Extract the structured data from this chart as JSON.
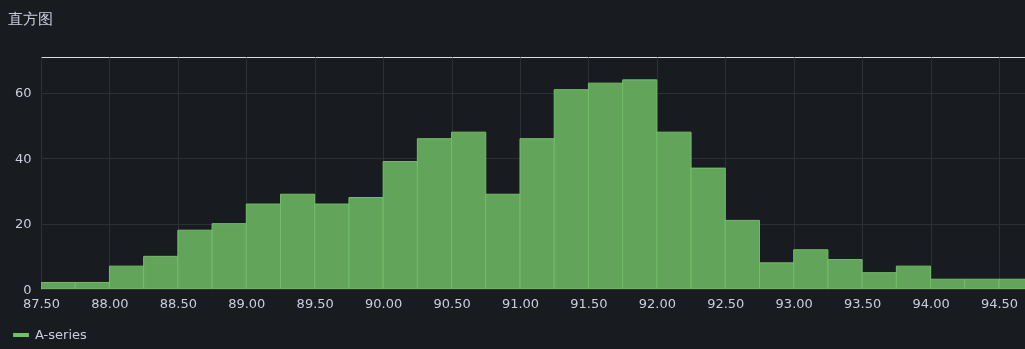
{
  "chart_data": {
    "type": "histogram",
    "title": "直方图",
    "bins": [
      87.5,
      87.75,
      88.0,
      88.25,
      88.5,
      88.75,
      89.0,
      89.25,
      89.5,
      89.75,
      90.0,
      90.25,
      90.5,
      90.75,
      91.0,
      91.25,
      91.5,
      91.75,
      92.0,
      92.25,
      92.5,
      92.75,
      93.0,
      93.25,
      93.5,
      93.75,
      94.0,
      94.25,
      94.5,
      94.75
    ],
    "series": [
      {
        "name": "A-series",
        "color": "#73bf69",
        "values": [
          2,
          2,
          7,
          10,
          18,
          20,
          26,
          29,
          26,
          28,
          39,
          46,
          48,
          29,
          46,
          61,
          63,
          64,
          48,
          37,
          21,
          8,
          12,
          9,
          5,
          7,
          3,
          3,
          3
        ]
      }
    ],
    "xlim": [
      87.5,
      94.69
    ],
    "ylim": [
      0,
      71
    ],
    "xticks": [
      {
        "value": 87.5,
        "label": "87.50"
      },
      {
        "value": 88.0,
        "label": "88.00"
      },
      {
        "value": 88.5,
        "label": "88.50"
      },
      {
        "value": 89.0,
        "label": "89.00"
      },
      {
        "value": 89.5,
        "label": "89.50"
      },
      {
        "value": 90.0,
        "label": "90.00"
      },
      {
        "value": 90.5,
        "label": "90.50"
      },
      {
        "value": 91.0,
        "label": "91.00"
      },
      {
        "value": 91.5,
        "label": "91.50"
      },
      {
        "value": 92.0,
        "label": "92.00"
      },
      {
        "value": 92.5,
        "label": "92.50"
      },
      {
        "value": 93.0,
        "label": "93.00"
      },
      {
        "value": 93.5,
        "label": "93.50"
      },
      {
        "value": 94.0,
        "label": "94.00"
      },
      {
        "value": 94.5,
        "label": "94.50"
      }
    ],
    "yticks": [
      0,
      20,
      40,
      60
    ],
    "grid": true,
    "legend": "bottom left"
  }
}
